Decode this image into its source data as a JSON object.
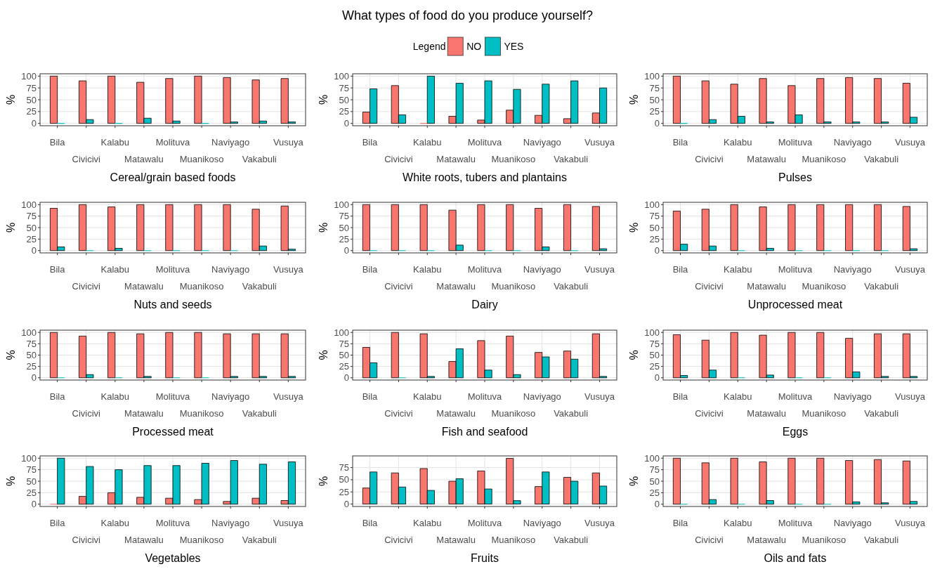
{
  "chart_data": [
    {
      "type": "bar",
      "categories": [
        "Bila",
        "Civicivi",
        "Kalabu",
        "Matawalu",
        "Molituva",
        "Muanikoso",
        "Naviyago",
        "Vakabuli",
        "Vusuya"
      ],
      "series": [
        {
          "color": "#f8766d",
          "values": [
            100,
            90,
            100,
            87,
            95,
            100,
            97,
            92,
            95
          ]
        },
        {
          "color": "#00bfc4",
          "values": [
            0,
            8,
            0,
            11,
            5,
            0,
            3,
            5,
            3
          ]
        }
      ],
      "xlabel": "Cereal/grain based foods",
      "ylabel": "%",
      "ylim": [
        -5,
        105
      ],
      "yticks": [
        0,
        25,
        50,
        75,
        100
      ],
      "grid": true
    },
    {
      "type": "bar",
      "title": "What types of food do you produce yourself?",
      "legend": "top",
      "legend_title": "Legend",
      "categories": [
        "Bila",
        "Civicivi",
        "Kalabu",
        "Matawalu",
        "Molituva",
        "Muanikoso",
        "Naviyago",
        "Vakabuli",
        "Vusuya"
      ],
      "series": [
        {
          "name": "NO",
          "color": "#f8766d",
          "values": [
            24,
            80,
            0,
            15,
            7,
            28,
            17,
            10,
            22
          ]
        },
        {
          "name": "YES",
          "color": "#00bfc4",
          "values": [
            73,
            18,
            100,
            85,
            90,
            72,
            83,
            90,
            75
          ]
        }
      ],
      "xlabel": "White roots, tubers and plantains",
      "ylabel": "%",
      "ylim": [
        -5,
        105
      ],
      "yticks": [
        0,
        25,
        50,
        75,
        100
      ],
      "grid": true
    },
    {
      "type": "bar",
      "categories": [
        "Bila",
        "Civicivi",
        "Kalabu",
        "Matawalu",
        "Molituva",
        "Muanikoso",
        "Naviyago",
        "Vakabuli",
        "Vusuya"
      ],
      "series": [
        {
          "color": "#f8766d",
          "values": [
            100,
            90,
            83,
            95,
            80,
            95,
            97,
            95,
            85
          ]
        },
        {
          "color": "#00bfc4",
          "values": [
            0,
            8,
            15,
            3,
            18,
            3,
            3,
            3,
            13
          ]
        }
      ],
      "xlabel": "Pulses",
      "ylabel": "%",
      "ylim": [
        -5,
        105
      ],
      "yticks": [
        0,
        25,
        50,
        75,
        100
      ],
      "grid": true
    },
    {
      "type": "bar",
      "categories": [
        "Bila",
        "Civicivi",
        "Kalabu",
        "Matawalu",
        "Molituva",
        "Muanikoso",
        "Naviyago",
        "Vakabuli",
        "Vusuya"
      ],
      "series": [
        {
          "color": "#f8766d",
          "values": [
            92,
            100,
            95,
            100,
            100,
            100,
            100,
            90,
            97
          ]
        },
        {
          "color": "#00bfc4",
          "values": [
            8,
            0,
            5,
            0,
            0,
            0,
            0,
            10,
            3
          ]
        }
      ],
      "xlabel": "Nuts and seeds",
      "ylabel": "%",
      "ylim": [
        -5,
        105
      ],
      "yticks": [
        0,
        25,
        50,
        75,
        100
      ],
      "grid": true
    },
    {
      "type": "bar",
      "categories": [
        "Bila",
        "Civicivi",
        "Kalabu",
        "Matawalu",
        "Molituva",
        "Muanikoso",
        "Naviyago",
        "Vakabuli",
        "Vusuya"
      ],
      "series": [
        {
          "color": "#f8766d",
          "values": [
            100,
            100,
            100,
            88,
            100,
            100,
            92,
            100,
            96
          ]
        },
        {
          "color": "#00bfc4",
          "values": [
            0,
            0,
            0,
            12,
            0,
            0,
            8,
            0,
            4
          ]
        }
      ],
      "xlabel": "Dairy",
      "ylabel": "%",
      "ylim": [
        -5,
        105
      ],
      "yticks": [
        0,
        25,
        50,
        75,
        100
      ],
      "grid": true
    },
    {
      "type": "bar",
      "categories": [
        "Bila",
        "Civicivi",
        "Kalabu",
        "Matawalu",
        "Molituva",
        "Muanikoso",
        "Naviyago",
        "Vakabuli",
        "Vusuya"
      ],
      "series": [
        {
          "color": "#f8766d",
          "values": [
            86,
            90,
            100,
            95,
            100,
            100,
            100,
            100,
            96
          ]
        },
        {
          "color": "#00bfc4",
          "values": [
            14,
            10,
            0,
            5,
            0,
            0,
            0,
            0,
            4
          ]
        }
      ],
      "xlabel": "Unprocessed meat",
      "ylabel": "%",
      "ylim": [
        -5,
        105
      ],
      "yticks": [
        0,
        25,
        50,
        75,
        100
      ],
      "grid": true
    },
    {
      "type": "bar",
      "categories": [
        "Bila",
        "Civicivi",
        "Kalabu",
        "Matawalu",
        "Molituva",
        "Muanikoso",
        "Naviyago",
        "Vakabuli",
        "Vusuya"
      ],
      "series": [
        {
          "color": "#f8766d",
          "values": [
            100,
            92,
            100,
            97,
            100,
            100,
            97,
            97,
            97
          ]
        },
        {
          "color": "#00bfc4",
          "values": [
            0,
            7,
            0,
            3,
            0,
            0,
            3,
            3,
            3
          ]
        }
      ],
      "xlabel": "Processed meat",
      "ylabel": "%",
      "ylim": [
        -5,
        105
      ],
      "yticks": [
        0,
        25,
        50,
        75,
        100
      ],
      "grid": true
    },
    {
      "type": "bar",
      "categories": [
        "Bila",
        "Civicivi",
        "Kalabu",
        "Matawalu",
        "Molituva",
        "Muanikoso",
        "Naviyago",
        "Vakabuli",
        "Vusuya"
      ],
      "series": [
        {
          "color": "#f8766d",
          "values": [
            67,
            100,
            97,
            36,
            82,
            92,
            56,
            59,
            97
          ]
        },
        {
          "color": "#00bfc4",
          "values": [
            33,
            0,
            3,
            64,
            17,
            7,
            46,
            41,
            3
          ]
        }
      ],
      "xlabel": "Fish and seafood",
      "ylabel": "%",
      "ylim": [
        -5,
        105
      ],
      "yticks": [
        0,
        25,
        50,
        75,
        100
      ],
      "grid": true
    },
    {
      "type": "bar",
      "categories": [
        "Bila",
        "Civicivi",
        "Kalabu",
        "Matawalu",
        "Molituva",
        "Muanikoso",
        "Naviyago",
        "Vakabuli",
        "Vusuya"
      ],
      "series": [
        {
          "color": "#f8766d",
          "values": [
            95,
            83,
            100,
            94,
            100,
            100,
            87,
            97,
            97
          ]
        },
        {
          "color": "#00bfc4",
          "values": [
            5,
            17,
            0,
            6,
            0,
            0,
            13,
            3,
            3
          ]
        }
      ],
      "xlabel": "Eggs",
      "ylabel": "%",
      "ylim": [
        -5,
        105
      ],
      "yticks": [
        0,
        25,
        50,
        75,
        100
      ],
      "grid": true
    },
    {
      "type": "bar",
      "categories": [
        "Bila",
        "Civicivi",
        "Kalabu",
        "Matawalu",
        "Molituva",
        "Muanikoso",
        "Naviyago",
        "Vakabuli",
        "Vusuya"
      ],
      "series": [
        {
          "color": "#f8766d",
          "values": [
            0,
            17,
            25,
            15,
            13,
            10,
            6,
            13,
            8
          ]
        },
        {
          "color": "#00bfc4",
          "values": [
            100,
            82,
            75,
            84,
            84,
            89,
            95,
            87,
            92
          ]
        }
      ],
      "xlabel": "Vegetables",
      "ylabel": "%",
      "ylim": [
        -5,
        105
      ],
      "yticks": [
        0,
        25,
        50,
        75,
        100
      ],
      "grid": true
    },
    {
      "type": "bar",
      "categories": [
        "Bila",
        "Civicivi",
        "Kalabu",
        "Matawalu",
        "Molituva",
        "Muanikoso",
        "Naviyago",
        "Vakabuli",
        "Vusuya"
      ],
      "series": [
        {
          "color": "#f8766d",
          "values": [
            33,
            64,
            73,
            47,
            68,
            94,
            36,
            55,
            64
          ]
        },
        {
          "color": "#00bfc4",
          "values": [
            66,
            35,
            28,
            52,
            31,
            7,
            66,
            47,
            37
          ]
        }
      ],
      "xlabel": "Fruits",
      "ylabel": "%",
      "ylim": [
        -5,
        99
      ],
      "yticks": [
        0,
        25,
        50,
        75
      ],
      "grid": true
    },
    {
      "type": "bar",
      "categories": [
        "Bila",
        "Civicivi",
        "Kalabu",
        "Matawalu",
        "Molituva",
        "Muanikoso",
        "Naviyago",
        "Vakabuli",
        "Vusuya"
      ],
      "series": [
        {
          "color": "#f8766d",
          "values": [
            100,
            90,
            100,
            92,
            100,
            100,
            95,
            97,
            94
          ]
        },
        {
          "color": "#00bfc4",
          "values": [
            0,
            10,
            0,
            8,
            0,
            0,
            5,
            3,
            6
          ]
        }
      ],
      "xlabel": "Oils and fats",
      "ylabel": "%",
      "ylim": [
        -5,
        105
      ],
      "yticks": [
        0,
        25,
        50,
        75,
        100
      ],
      "grid": true
    }
  ]
}
